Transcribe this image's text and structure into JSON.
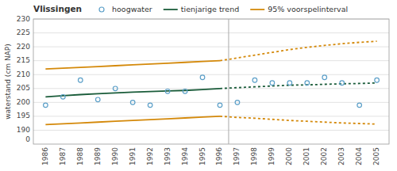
{
  "chart_data": {
    "type": "line",
    "title": "Vlissingen",
    "y_label": "waterstand (cm NAP)",
    "x": [
      1986,
      1987,
      1988,
      1989,
      1990,
      1991,
      1992,
      1993,
      1994,
      1995,
      1996,
      1997,
      1998,
      1999,
      2000,
      2001,
      2002,
      2003,
      2004,
      2005
    ],
    "series": [
      {
        "name": "hoogwater",
        "type": "scatter",
        "marker": "circle",
        "color": "#5b9fc8",
        "values": [
          199,
          202,
          208,
          201,
          205,
          200,
          199,
          204,
          204,
          209,
          199,
          200,
          208,
          207,
          207,
          207,
          209,
          207,
          199,
          208
        ]
      },
      {
        "name": "tienjarige trend",
        "type": "line",
        "line_style": "solid",
        "color": "#1a5c3a",
        "values": [
          202.0,
          202.4,
          202.8,
          203.1,
          203.4,
          203.7,
          203.9,
          204.1,
          204.3,
          204.6,
          205.0,
          null,
          null,
          null,
          null,
          null,
          null,
          null,
          null,
          null
        ]
      },
      {
        "type": "line",
        "line_style": "dotted",
        "color": "#1a5c3a",
        "values": [
          null,
          null,
          null,
          null,
          null,
          null,
          null,
          null,
          null,
          null,
          205.0,
          205.3,
          205.6,
          205.9,
          206.2,
          206.3,
          206.5,
          206.7,
          206.8,
          207.0
        ]
      },
      {
        "name": "95% voorspelinterval",
        "type": "line",
        "line_style": "solid",
        "color": "#d4890a",
        "values": [
          212.0,
          212.3,
          212.6,
          212.9,
          213.2,
          213.5,
          213.8,
          214.1,
          214.4,
          214.7,
          215.0,
          null,
          null,
          null,
          null,
          null,
          null,
          null,
          null,
          null
        ]
      },
      {
        "type": "line",
        "line_style": "solid",
        "color": "#d4890a",
        "values": [
          192.0,
          192.3,
          192.6,
          192.9,
          193.2,
          193.5,
          193.8,
          194.1,
          194.4,
          194.7,
          195.0,
          null,
          null,
          null,
          null,
          null,
          null,
          null,
          null,
          null
        ]
      },
      {
        "type": "line",
        "line_style": "dotted",
        "color": "#d4890a",
        "values": [
          null,
          null,
          null,
          null,
          null,
          null,
          null,
          null,
          null,
          null,
          215.0,
          216.0,
          217.0,
          218.0,
          219.0,
          219.8,
          220.5,
          221.1,
          221.6,
          222.0
        ]
      },
      {
        "type": "line",
        "line_style": "dotted",
        "color": "#d4890a",
        "values": [
          null,
          null,
          null,
          null,
          null,
          null,
          null,
          null,
          null,
          null,
          195.0,
          194.6,
          194.3,
          193.9,
          193.5,
          193.2,
          192.9,
          192.6,
          192.4,
          192.2
        ]
      }
    ],
    "vlines": [
      1996.5
    ],
    "annotations": [
      {
        "text": "0",
        "x": 1985.3,
        "y": 186.5
      }
    ],
    "xlim": [
      1985.3,
      2005.7
    ],
    "xticks": [
      1986,
      1987,
      1988,
      1989,
      1990,
      1991,
      1992,
      1993,
      1994,
      1995,
      1996,
      1997,
      1998,
      1999,
      2000,
      2001,
      2002,
      2003,
      2004,
      2005
    ],
    "ylim": [
      185,
      230
    ],
    "yticks": [
      190,
      195,
      200,
      205,
      210,
      215,
      220,
      225,
      230
    ],
    "grid": true,
    "legend": "top"
  }
}
